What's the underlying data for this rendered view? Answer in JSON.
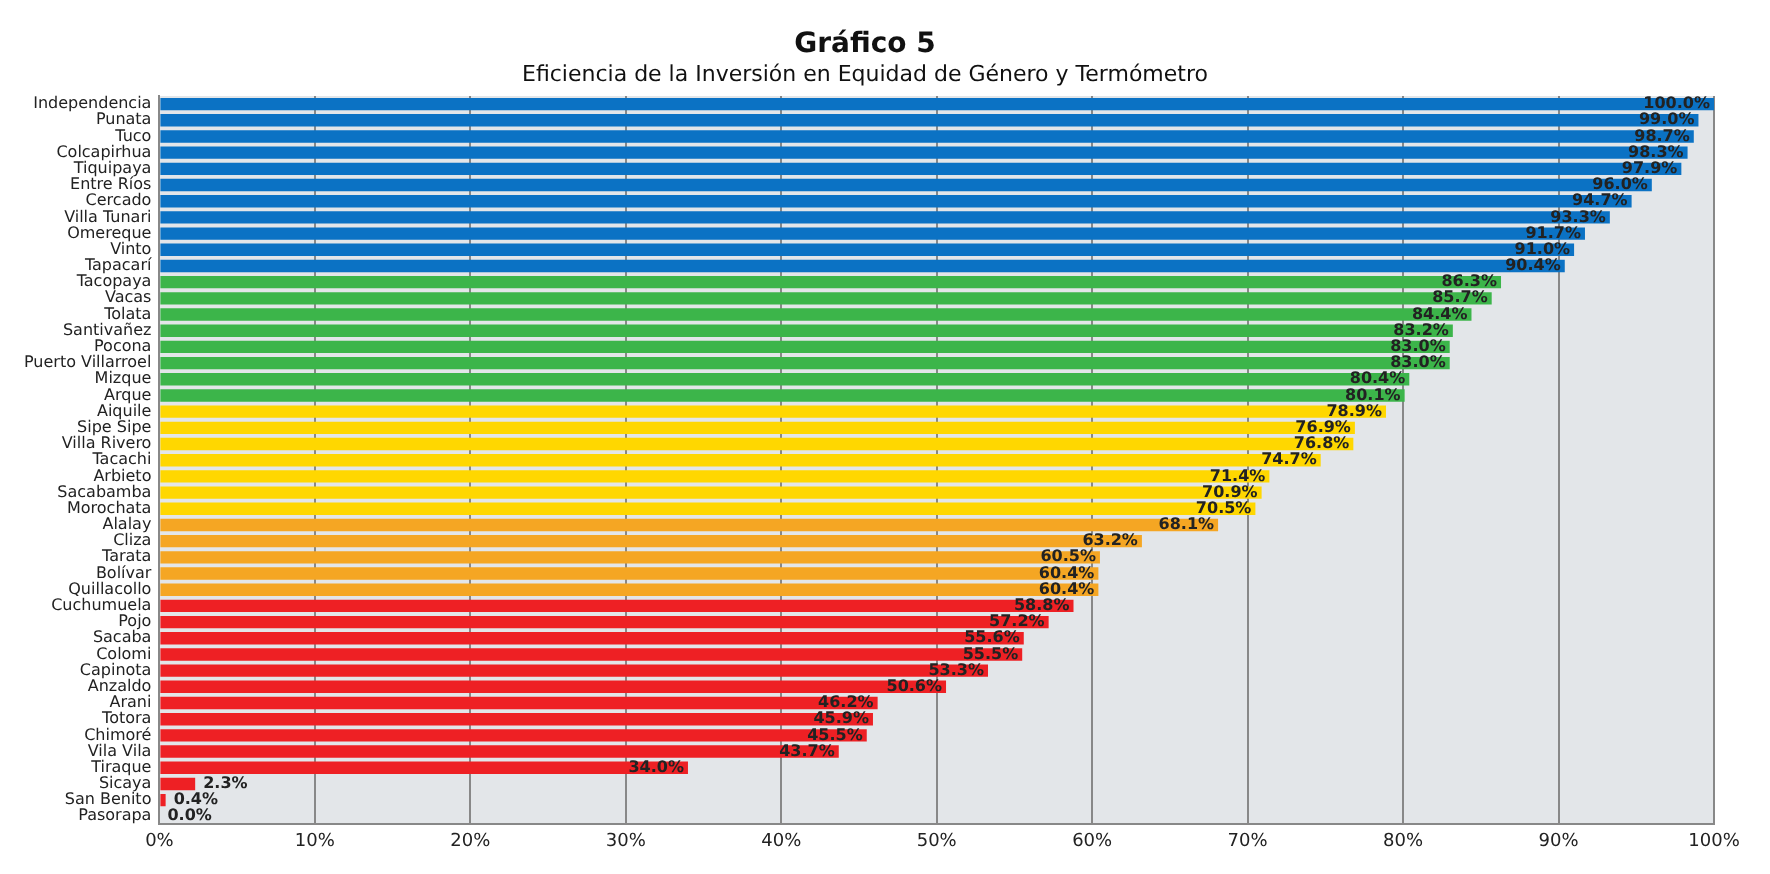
{
  "chart_data": {
    "type": "bar",
    "orientation": "horizontal",
    "title": "Gráfico 5",
    "subtitle": "Eficiencia de la Inversión en Equidad de Género y Termómetro",
    "categories": [
      "Independencia",
      "Punata",
      "Tuco",
      "Colcapirhua",
      "Tiquipaya",
      "Entre Ríos",
      "Cercado",
      "Villa Tunari",
      "Omereque",
      "Vinto",
      "Tapacarí",
      "Tacopaya",
      "Vacas",
      "Tolata",
      "Santivañez",
      "Pocona",
      "Puerto Villarroel",
      "Mizque",
      "Arque",
      "Aiquile",
      "Sipe Sipe",
      "Villa Rivero",
      "Tacachi",
      "Arbieto",
      "Sacabamba",
      "Morochata",
      "Alalay",
      "Cliza",
      "Tarata",
      "Bolívar",
      "Quillacollo",
      "Cuchumuela",
      "Pojo",
      "Sacaba",
      "Colomi",
      "Capinota",
      "Anzaldo",
      "Arani",
      "Totora",
      "Chimoré",
      "Vila Vila",
      "Tiraque",
      "Sicaya",
      "San Benito",
      "Pasorapa"
    ],
    "values": [
      100.0,
      99.0,
      98.7,
      98.3,
      97.9,
      96.0,
      94.7,
      93.3,
      91.7,
      91.0,
      90.4,
      86.3,
      85.7,
      84.4,
      83.2,
      83.0,
      83.0,
      80.4,
      80.1,
      78.9,
      76.9,
      76.8,
      74.7,
      71.4,
      70.9,
      70.5,
      68.1,
      63.2,
      60.5,
      60.4,
      60.4,
      58.8,
      57.2,
      55.6,
      55.5,
      53.3,
      50.6,
      46.2,
      45.9,
      45.5,
      43.7,
      34.0,
      2.3,
      0.4,
      0.0
    ],
    "value_labels": [
      "100.0%",
      "99.0%",
      "98.7%",
      "98.3%",
      "97.9%",
      "96.0%",
      "94.7%",
      "93.3%",
      "91.7%",
      "91.0%",
      "90.4%",
      "86.3%",
      "85.7%",
      "84.4%",
      "83.2%",
      "83.0%",
      "83.0%",
      "80.4%",
      "80.1%",
      "78.9%",
      "76.9%",
      "76.8%",
      "74.7%",
      "71.4%",
      "70.9%",
      "70.5%",
      "68.1%",
      "63.2%",
      "60.5%",
      "60.4%",
      "60.4%",
      "58.8%",
      "57.2%",
      "55.6%",
      "55.5%",
      "53.3%",
      "50.6%",
      "46.2%",
      "45.9%",
      "45.5%",
      "43.7%",
      "34.0%",
      "2.3%",
      "0.4%",
      "0.0%"
    ],
    "colors": [
      "#0b72c4",
      "#0b72c4",
      "#0b72c4",
      "#0b72c4",
      "#0b72c4",
      "#0b72c4",
      "#0b72c4",
      "#0b72c4",
      "#0b72c4",
      "#0b72c4",
      "#0b72c4",
      "#3cb54a",
      "#3cb54a",
      "#3cb54a",
      "#3cb54a",
      "#3cb54a",
      "#3cb54a",
      "#3cb54a",
      "#3cb54a",
      "#ffd700",
      "#ffd700",
      "#ffd700",
      "#ffd700",
      "#ffd700",
      "#ffd700",
      "#ffd700",
      "#f5a623",
      "#f5a623",
      "#f5a623",
      "#f5a623",
      "#f5a623",
      "#ee2024",
      "#ee2024",
      "#ee2024",
      "#ee2024",
      "#ee2024",
      "#ee2024",
      "#ee2024",
      "#ee2024",
      "#ee2024",
      "#ee2024",
      "#ee2024",
      "#ee2024",
      "#ee2024",
      "#ee2024"
    ],
    "xlim": [
      0,
      100
    ],
    "xticks": [
      {
        "value": 0,
        "label": "0%"
      },
      {
        "value": 10,
        "label": "10%"
      },
      {
        "value": 20,
        "label": "20%"
      },
      {
        "value": 30,
        "label": "30%"
      },
      {
        "value": 40,
        "label": "40%"
      },
      {
        "value": 50,
        "label": "50%"
      },
      {
        "value": 60,
        "label": "60%"
      },
      {
        "value": 70,
        "label": "70%"
      },
      {
        "value": 80,
        "label": "80%"
      },
      {
        "value": 90,
        "label": "90%"
      },
      {
        "value": 100,
        "label": "100%"
      }
    ],
    "grid": "x",
    "legend": false
  }
}
